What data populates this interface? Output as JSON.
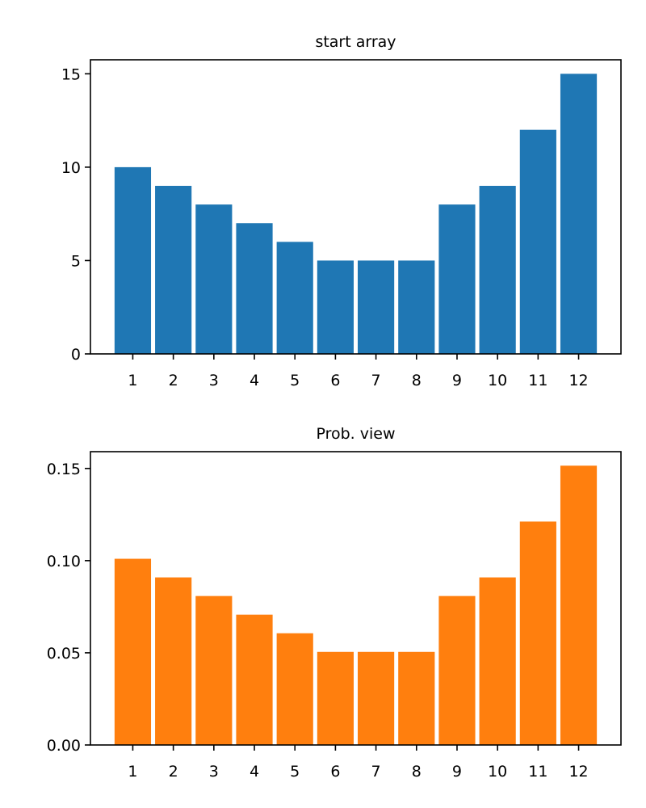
{
  "chart_data": [
    {
      "type": "bar",
      "title": "start array",
      "xlabel": "",
      "ylabel": "",
      "categories": [
        "1",
        "2",
        "3",
        "4",
        "5",
        "6",
        "7",
        "8",
        "9",
        "10",
        "11",
        "12"
      ],
      "values": [
        10,
        9,
        8,
        7,
        6,
        5,
        5,
        5,
        8,
        9,
        12,
        15
      ],
      "ylim": [
        0,
        15.75
      ],
      "xlim": [
        -0.045,
        13.045
      ],
      "yticks": [
        0,
        5,
        10,
        15
      ],
      "ytick_labels": [
        "0",
        "5",
        "10",
        "15"
      ],
      "color": "#1f77b4",
      "grid": false
    },
    {
      "type": "bar",
      "title": "Prob. view",
      "xlabel": "",
      "ylabel": "",
      "categories": [
        "1",
        "2",
        "3",
        "4",
        "5",
        "6",
        "7",
        "8",
        "9",
        "10",
        "11",
        "12"
      ],
      "values": [
        0.101,
        0.0909,
        0.0808,
        0.0707,
        0.0606,
        0.0505,
        0.0505,
        0.0505,
        0.0808,
        0.0909,
        0.1212,
        0.1515
      ],
      "ylim": [
        0,
        0.1591
      ],
      "xlim": [
        -0.045,
        13.045
      ],
      "yticks": [
        0,
        0.05,
        0.1,
        0.15
      ],
      "ytick_labels": [
        "0.00",
        "0.05",
        "0.10",
        "0.15"
      ],
      "color": "#ff7f0e",
      "grid": false
    }
  ]
}
